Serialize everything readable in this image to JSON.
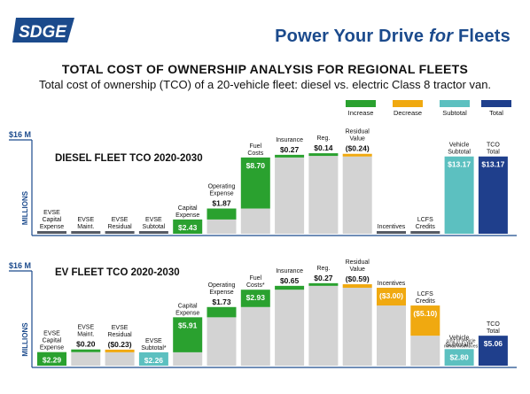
{
  "header": {
    "logo_text": "SDGE",
    "headline_pre": "Power Your Drive ",
    "headline_em": "for",
    "headline_post": " Fleets",
    "title": "TOTAL COST OF OWNERSHIP ANALYSIS FOR REGIONAL FLEETS",
    "subtitle": "Total cost of ownership (TCO) of a 20-vehicle fleet: diesel vs. electric Class 8 tractor van."
  },
  "colors": {
    "increase": "#2aa12f",
    "decrease": "#f0a910",
    "subtotal": "#5cc0c0",
    "total": "#1f3f8c",
    "base": "#d3d3d3",
    "tiny": "#555a63",
    "axis": "#1b4a8c"
  },
  "legend": [
    {
      "label": "Increase",
      "kind": "increase"
    },
    {
      "label": "Decrease",
      "kind": "decrease"
    },
    {
      "label": "Subtotal",
      "kind": "subtotal"
    },
    {
      "label": "Total",
      "kind": "total"
    }
  ],
  "chart_data": [
    {
      "type": "bar",
      "subtype": "waterfall",
      "title": "DIESEL FLEET TCO 2020-2030",
      "ylabel": "MILLIONS",
      "ymax_label": "$16 M",
      "ylim": [
        0,
        16
      ],
      "categories": [
        "EVSE Capital Expense",
        "EVSE Maint.",
        "EVSE Residual",
        "EVSE Subtotal",
        "Capital Expense",
        "Operating Expense",
        "Fuel Costs",
        "Insurance",
        "Reg.",
        "Residual Value",
        "Incentives",
        "LCFS Credits",
        "Vehicle Subtotal",
        "TCO Total"
      ],
      "values": [
        0,
        0,
        0,
        0,
        2.43,
        1.87,
        8.7,
        0.27,
        0.14,
        -0.24,
        0,
        0,
        13.17,
        13.17
      ],
      "kinds": [
        "zero",
        "zero",
        "zero",
        "zero",
        "increase",
        "increase",
        "increase",
        "increase",
        "increase",
        "decrease",
        "zero",
        "zero",
        "subtotal",
        "total"
      ],
      "value_labels": [
        "",
        "",
        "",
        "",
        "$2.43",
        "$1.87",
        "$8.70",
        "$0.27",
        "$0.14",
        "($0.24)",
        "",
        "",
        "$13.17",
        "$13.17"
      ],
      "notes": [
        "",
        "",
        "",
        "",
        "",
        "",
        "",
        "",
        "",
        "",
        "",
        "",
        "",
        ""
      ]
    },
    {
      "type": "bar",
      "subtype": "waterfall",
      "title": "EV FLEET TCO 2020-2030",
      "ylabel": "MILLIONS",
      "ymax_label": "$16 M",
      "ylim": [
        0,
        16
      ],
      "categories": [
        "EVSE Capital Expense",
        "EVSE Maint.",
        "EVSE Residual",
        "EVSE Subtotal*",
        "Capital Expense",
        "Operating Expense",
        "Fuel Costs*",
        "Insurance",
        "Reg.",
        "Residual Value",
        "Incentives",
        "LCFS Credits",
        "Vehicle Subtotal**",
        "TCO Total"
      ],
      "values": [
        2.29,
        0.2,
        -0.23,
        2.26,
        5.91,
        1.73,
        2.93,
        0.65,
        0.27,
        -0.59,
        -3.0,
        -5.1,
        2.8,
        5.06
      ],
      "kinds": [
        "increase",
        "increase",
        "decrease",
        "subtotal",
        "increase",
        "increase",
        "increase",
        "increase",
        "increase",
        "decrease",
        "decrease",
        "decrease",
        "subtotal",
        "total"
      ],
      "value_labels": [
        "$2.29",
        "$0.20",
        "($0.23)",
        "$2.26",
        "$5.91",
        "$1.73",
        "$2.93",
        "$0.65",
        "$0.27",
        "($0.59)",
        "($3.00)",
        "($5.10)",
        "$2.80",
        "$5.06"
      ],
      "notes": [
        "",
        "",
        "",
        "",
        "",
        "",
        "",
        "",
        "",
        "",
        "",
        "",
        "cost of vehicle minus incentives",
        ""
      ]
    }
  ]
}
